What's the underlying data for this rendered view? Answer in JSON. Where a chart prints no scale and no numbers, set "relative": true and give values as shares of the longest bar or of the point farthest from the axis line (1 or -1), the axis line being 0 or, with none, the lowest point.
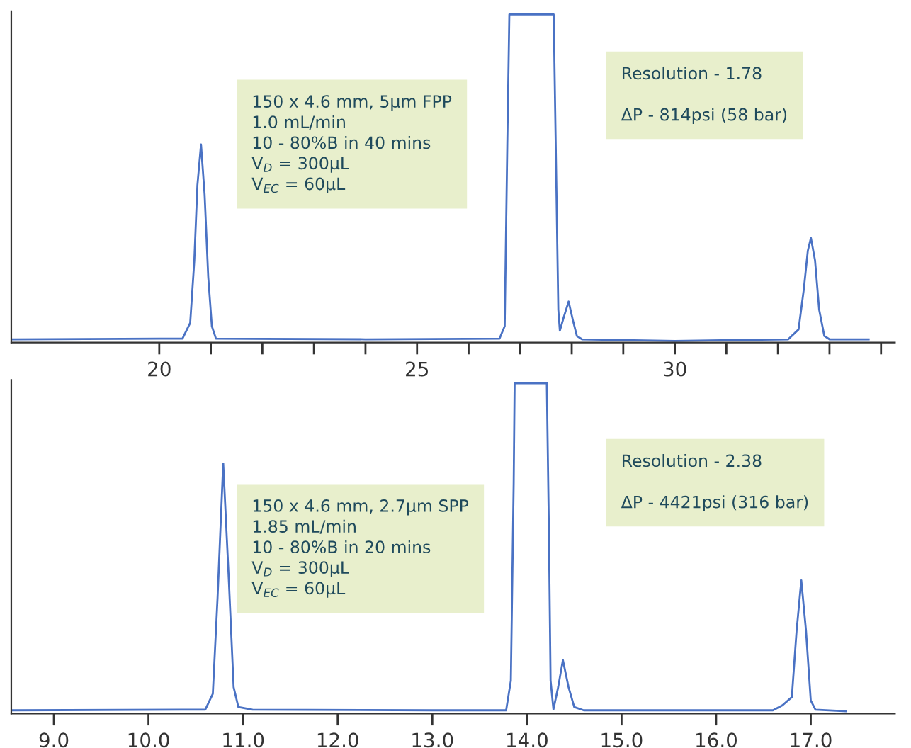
{
  "chart_data": [
    {
      "type": "line",
      "relative": true,
      "tick_labels": "x",
      "grid": false,
      "legend": false,
      "marker": "none",
      "line_style": "solid",
      "xlim": [
        17.13,
        34.27
      ],
      "xticks": [
        20,
        {
          "value": 21,
          "label": null
        },
        {
          "value": 22,
          "label": null
        },
        {
          "value": 23,
          "label": null
        },
        {
          "value": 24,
          "label": null
        },
        25,
        {
          "value": 26,
          "label": null
        },
        {
          "value": 27,
          "label": null
        },
        {
          "value": 28,
          "label": null
        },
        {
          "value": 29,
          "label": null
        },
        30,
        {
          "value": 31,
          "label": null
        },
        {
          "value": 32,
          "label": null
        },
        {
          "value": 33,
          "label": null
        },
        {
          "value": 34,
          "label": null
        }
      ],
      "series": [
        {
          "color": "#4a72c4",
          "x": [
            17.15,
            20.0,
            20.45,
            20.6,
            20.68,
            20.74,
            20.81,
            20.88,
            20.95,
            21.02,
            21.1,
            24.0,
            26.6,
            26.7,
            26.75,
            26.79,
            27.65,
            27.7,
            27.74,
            27.77,
            27.85,
            27.94,
            28.02,
            28.1,
            28.2,
            30.0,
            32.2,
            32.4,
            32.5,
            32.58,
            32.64,
            32.72,
            32.8,
            32.9,
            33.0,
            33.76
          ],
          "values": [
            0.01,
            0.012,
            0.012,
            0.06,
            0.25,
            0.48,
            0.604,
            0.45,
            0.2,
            0.05,
            0.012,
            0.01,
            0.012,
            0.05,
            0.6,
            1,
            1,
            0.5,
            0.1,
            0.036,
            0.08,
            0.125,
            0.07,
            0.02,
            0.01,
            0.005,
            0.01,
            0.04,
            0.16,
            0.28,
            0.319,
            0.25,
            0.1,
            0.02,
            0.01,
            0.01
          ]
        }
      ],
      "annotations": [
        "150 x 4.6 mm, 5µm FPP\n1.0 mL/min\n10 - 80%B in 40 mins\nV$_{D}$ = 300µL\nV$_{EC}$ = 60µL",
        "Resolution - 1.78\n\nΔP - 814psi (58 bar)"
      ]
    },
    {
      "type": "line",
      "relative": true,
      "tick_labels": "x",
      "grid": false,
      "legend": false,
      "marker": "none",
      "line_style": "solid",
      "xlim": [
        8.55,
        17.89
      ],
      "xticks": [
        {
          "value": 9,
          "label": "9.0"
        },
        {
          "value": 10,
          "label": "10.0"
        },
        {
          "value": 11,
          "label": "11.0"
        },
        {
          "value": 12,
          "label": "12.0"
        },
        {
          "value": 13,
          "label": "13.0"
        },
        {
          "value": 14,
          "label": "14.0"
        },
        {
          "value": 15,
          "label": "15.0"
        },
        {
          "value": 16,
          "label": "16.0"
        },
        {
          "value": 17,
          "label": "17.0"
        }
      ],
      "series": [
        {
          "color": "#4a72c4",
          "x": [
            8.56,
            10.6,
            10.68,
            10.73,
            10.79,
            10.85,
            10.9,
            10.95,
            11.1,
            13.0,
            13.78,
            13.83,
            13.86,
            13.87,
            14.21,
            14.23,
            14.25,
            14.28,
            14.33,
            14.38,
            14.44,
            14.5,
            14.6,
            16.6,
            16.7,
            16.8,
            16.85,
            16.9,
            16.95,
            17.0,
            17.05,
            17.37
          ],
          "values": [
            0.01,
            0.012,
            0.06,
            0.35,
            0.757,
            0.4,
            0.08,
            0.02,
            0.012,
            0.01,
            0.01,
            0.1,
            0.7,
            1,
            1,
            0.6,
            0.1,
            0.013,
            0.08,
            0.162,
            0.08,
            0.02,
            0.01,
            0.01,
            0.025,
            0.05,
            0.25,
            0.403,
            0.25,
            0.04,
            0.012,
            0.007
          ]
        }
      ],
      "annotations": [
        "150 x 4.6 mm, 2.7µm SPP\n1.85 mL/min\n10 - 80%B in 20 mins\nV$_{D}$ = 300µL\nV$_{EC}$ = 60µL",
        "Resolution - 2.38\n\nΔP - 4421psi (316 bar)"
      ]
    }
  ]
}
